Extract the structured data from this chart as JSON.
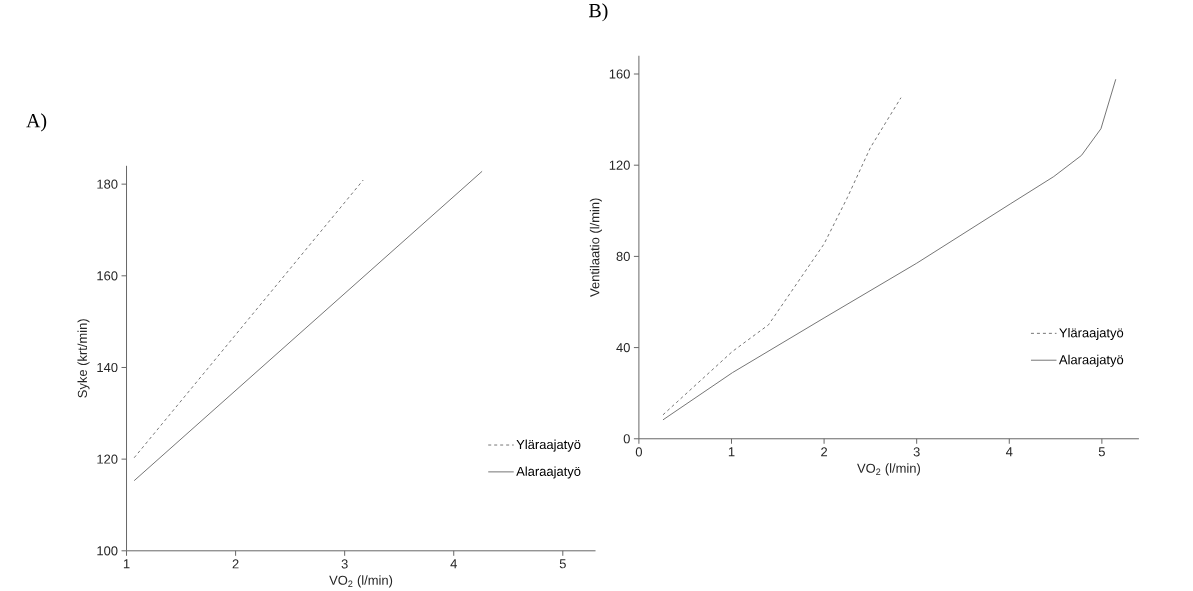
{
  "chart_data": [
    {
      "type": "line",
      "title": "A)",
      "xlabel": "VO$_{2}$ (l/min)",
      "ylabel": "Syke (krt/min)",
      "xlim": [
        1,
        5.3
      ],
      "ylim": [
        100,
        184
      ],
      "xticks": [
        1,
        2,
        3,
        4,
        5
      ],
      "yticks": [
        100,
        120,
        140,
        160,
        180
      ],
      "legend": "bottom right",
      "series": [
        {
          "name": "Yläraajatyö",
          "color": "#666666",
          "line_style": "dashed",
          "x": [
            1.07,
            3.17
          ],
          "values": [
            120.3,
            180.9
          ]
        },
        {
          "name": "Alaraajatyö",
          "color": "#666666",
          "line_style": "solid",
          "x": [
            1.07,
            4.26
          ],
          "values": [
            115.3,
            182.8
          ]
        }
      ]
    },
    {
      "type": "line",
      "title": "B)",
      "xlabel": "VO$_{2}$ (l/min)",
      "ylabel": "Ventilaatio (l/min)",
      "xlim": [
        0,
        5.4
      ],
      "ylim": [
        0,
        168
      ],
      "xticks": [
        0,
        1,
        2,
        3,
        4,
        5
      ],
      "yticks": [
        0,
        40,
        80,
        120,
        160
      ],
      "legend": "bottom right",
      "series": [
        {
          "name": "Yläraajatyö",
          "color": "#666666",
          "line_style": "dashed",
          "x": [
            0.26,
            1.01,
            1.4,
            2.0,
            2.25,
            2.5,
            2.83
          ],
          "values": [
            10.5,
            38.3,
            50,
            85.5,
            105.7,
            127.7,
            149.6
          ]
        },
        {
          "name": "Alaraajatyö",
          "color": "#666666",
          "line_style": "solid",
          "x": [
            0.26,
            1.01,
            2.0,
            3.0,
            4.01,
            4.48,
            4.78,
            4.99,
            5.15
          ],
          "values": [
            8.3,
            29,
            53,
            77,
            103,
            115,
            124.3,
            136,
            157.7
          ]
        }
      ]
    }
  ]
}
